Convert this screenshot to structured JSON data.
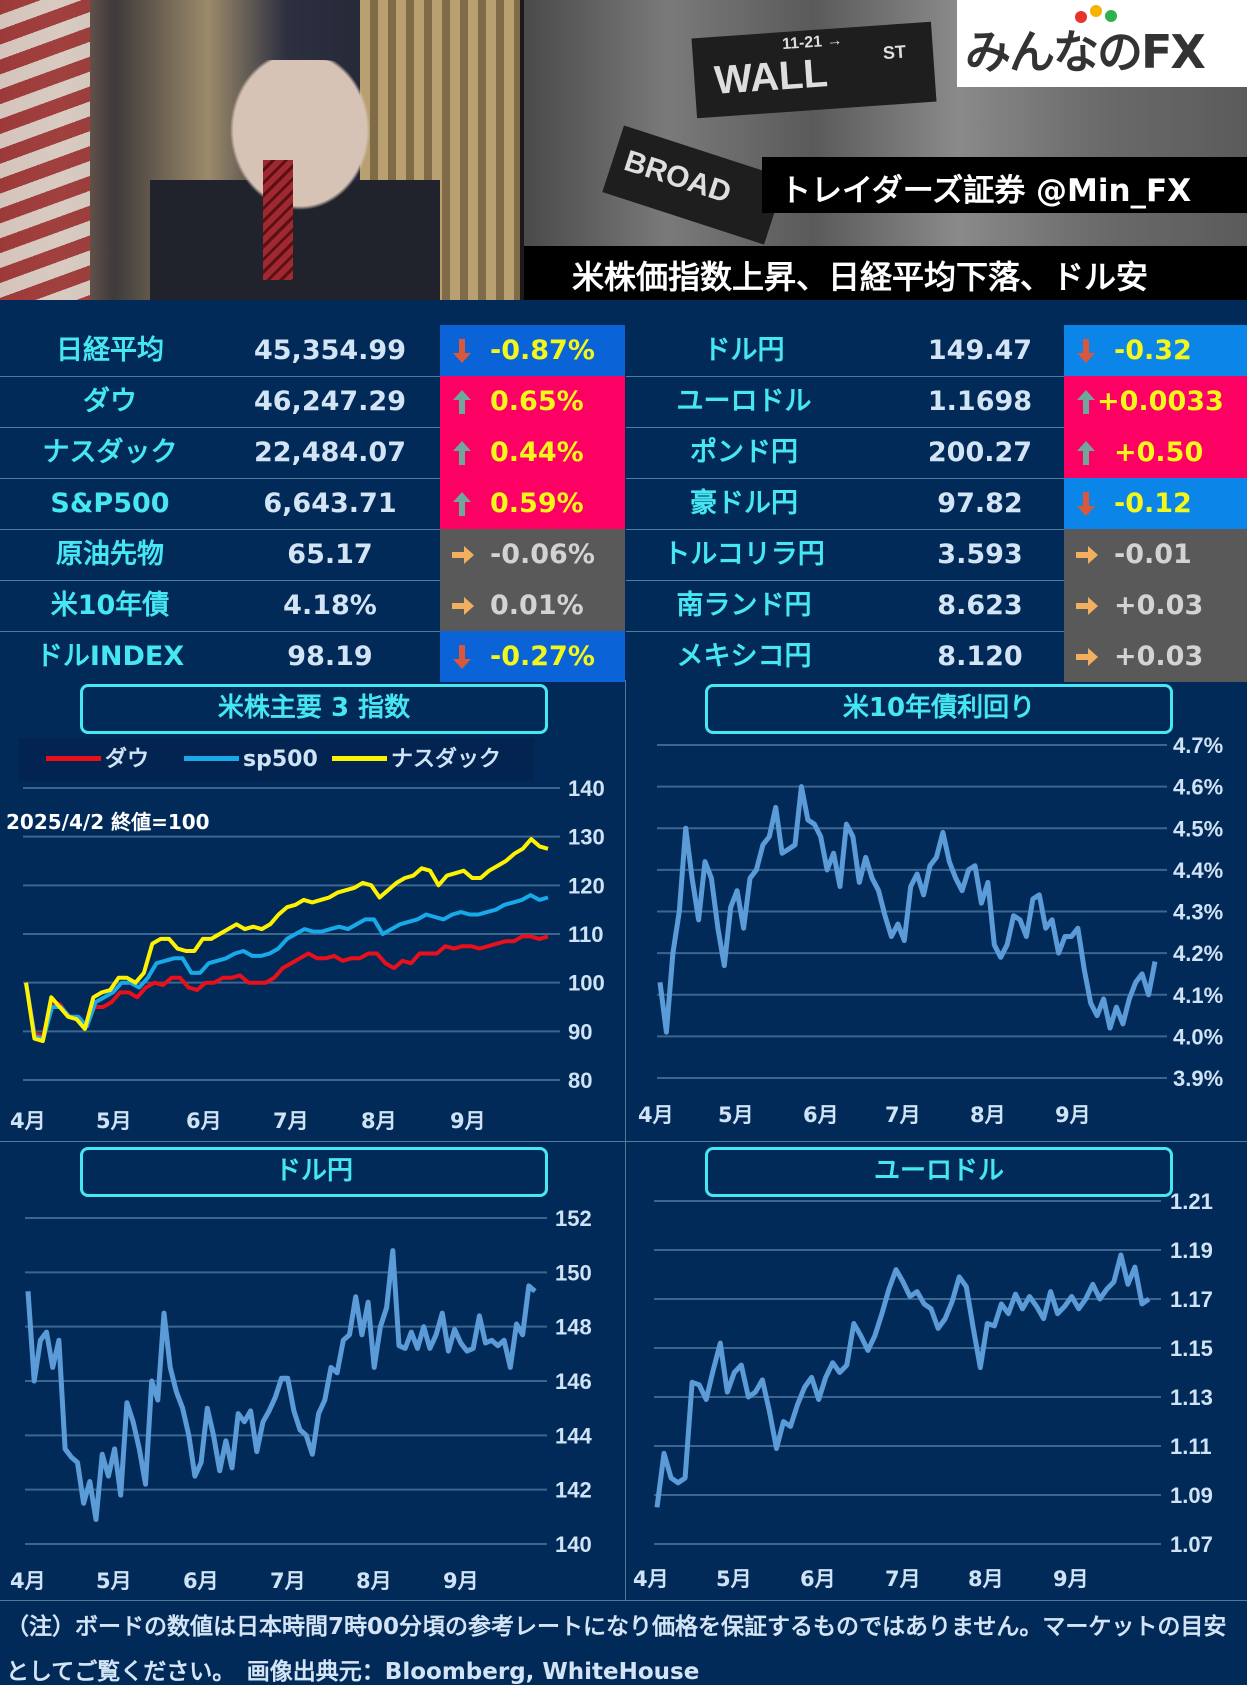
{
  "header": {
    "logo_text": "みんなのFX",
    "logo_dots": [
      "#e8332a",
      "#f5b400",
      "#2bb24c",
      "#1f8ad6"
    ],
    "handle": "トレイダーズ証券 @Min_FX",
    "headline": "米株価指数上昇、日経平均下落、ドル安",
    "photo_left_alt": "president-signing-photo",
    "photo_right_alt": "wall-street-sign-photo",
    "sign_wall": "WALL",
    "sign_wall_st": "ST",
    "sign_wall_num": "11-21 →",
    "sign_broad": "BROAD"
  },
  "colors": {
    "background": "#022a58",
    "name_text": "#46e6f2",
    "value_text": "#d3e4f5",
    "down_bg_left": "#0a64d8",
    "down_bg_right": "#0b86e8",
    "up_bg": "#fc0064",
    "flat_bg": "#595959",
    "up_down_text": "#f4f71a",
    "flat_text": "#d3d3d3",
    "arrow_down": "#d9573a",
    "arrow_up": "#6fa79a",
    "arrow_flat": "#f0b060",
    "dow": "#e8101a",
    "sp500": "#19a8e8",
    "nasdaq": "#fff200",
    "single_line": "#5b9bd8"
  },
  "board": {
    "left": [
      {
        "name": "日経平均",
        "value": "45,354.99",
        "change": "-0.87%",
        "dir": "down"
      },
      {
        "name": "ダウ",
        "value": "46,247.29",
        "change": "0.65%",
        "dir": "up"
      },
      {
        "name": "ナスダック",
        "value": "22,484.07",
        "change": "0.44%",
        "dir": "up"
      },
      {
        "name": "S&P500",
        "value": "6,643.71",
        "change": "0.59%",
        "dir": "up"
      },
      {
        "name": "原油先物",
        "value": "65.17",
        "change": "-0.06%",
        "dir": "flat"
      },
      {
        "name": "米10年債",
        "value": "4.18%",
        "change": "0.01%",
        "dir": "flat"
      },
      {
        "name": "ドルINDEX",
        "value": "98.19",
        "change": "-0.27%",
        "dir": "down"
      }
    ],
    "right": [
      {
        "name": "ドル円",
        "value": "149.47",
        "change": "-0.32",
        "dir": "down"
      },
      {
        "name": "ユーロドル",
        "value": "1.1698",
        "change": "+0.0033",
        "dir": "up"
      },
      {
        "name": "ポンド円",
        "value": "200.27",
        "change": "+0.50",
        "dir": "up"
      },
      {
        "name": "豪ドル円",
        "value": "97.82",
        "change": "-0.12",
        "dir": "down"
      },
      {
        "name": "トルコリラ円",
        "value": "3.593",
        "change": "-0.01",
        "dir": "flat"
      },
      {
        "name": "南ランド円",
        "value": "8.623",
        "change": "+0.03",
        "dir": "flat"
      },
      {
        "name": "メキシコ円",
        "value": "8.120",
        "change": "+0.03",
        "dir": "flat"
      }
    ]
  },
  "chart_data": [
    {
      "type": "line",
      "title": "米株主要 3 指数",
      "annotation": "2025/4/2 終値=100",
      "xlabel": "",
      "ylabel": "",
      "ylim": [
        80,
        140
      ],
      "yticks": [
        "80",
        "90",
        "100",
        "110",
        "120",
        "130",
        "140"
      ],
      "categories": [
        "4月",
        "5月",
        "6月",
        "7月",
        "8月",
        "9月"
      ],
      "legend_position": "top",
      "grid": true,
      "series": [
        {
          "name": "ダウ",
          "color": "#e8101a",
          "values": [
            100,
            89.5,
            89,
            96,
            95.5,
            93,
            93,
            91,
            95,
            95,
            96,
            98,
            98,
            97,
            99,
            100,
            99.5,
            101,
            101,
            99,
            98.5,
            100,
            100,
            101,
            101,
            101.5,
            100,
            100,
            100,
            101,
            103,
            104,
            105,
            106,
            105,
            105,
            105.5,
            104.5,
            105,
            105,
            106,
            106,
            104,
            103,
            104.5,
            104,
            106,
            106,
            106,
            107.5,
            107,
            107.5,
            107.5,
            107,
            107.5,
            108,
            108.5,
            108.5,
            109.5,
            109.5,
            109,
            109.5
          ]
        },
        {
          "name": "sp500",
          "color": "#19a8e8",
          "values": [
            100,
            89,
            88.5,
            95,
            95,
            93,
            93,
            91,
            96,
            97,
            98,
            100,
            100,
            99,
            101,
            104,
            104.5,
            105,
            105,
            102,
            102,
            104,
            104.5,
            105,
            106,
            106.5,
            105.5,
            105.5,
            106,
            107,
            109,
            110,
            111,
            110.5,
            110.5,
            111,
            111.5,
            111,
            112,
            113,
            113,
            110,
            111,
            112,
            112.5,
            113,
            114,
            113.5,
            113,
            114,
            114.5,
            114,
            114,
            114.5,
            115,
            116,
            116.5,
            117,
            118,
            117,
            117.5
          ]
        },
        {
          "name": "ナスダック",
          "color": "#fff200",
          "values": [
            100,
            88.5,
            88,
            97,
            95,
            93,
            92.5,
            90.5,
            97,
            98,
            98.5,
            101,
            101,
            100,
            102,
            108,
            109,
            109,
            107,
            106.5,
            106.5,
            109,
            109,
            110,
            111,
            112,
            111,
            111.5,
            111,
            112,
            114,
            115.5,
            116,
            117,
            116.5,
            117,
            117.5,
            118.5,
            119,
            119.5,
            120.5,
            120,
            117.5,
            119,
            120.5,
            121.5,
            122,
            123.5,
            123,
            120,
            122,
            122.5,
            123,
            121.5,
            121.5,
            123,
            124,
            125,
            126.5,
            127.5,
            129.5,
            128,
            127.5
          ]
        }
      ]
    },
    {
      "type": "line",
      "title": "米10年債利回り",
      "xlabel": "",
      "ylabel": "",
      "ylim": [
        3.9,
        4.7
      ],
      "yticks": [
        "3.9%",
        "4.0%",
        "4.1%",
        "4.2%",
        "4.3%",
        "4.4%",
        "4.5%",
        "4.6%",
        "4.7%"
      ],
      "categories": [
        "4月",
        "5月",
        "6月",
        "7月",
        "8月",
        "9月"
      ],
      "grid": true,
      "series": [
        {
          "name": "米10年債利回り",
          "color": "#5b9bd8",
          "values": [
            4.13,
            4.01,
            4.2,
            4.3,
            4.5,
            4.38,
            4.28,
            4.42,
            4.38,
            4.26,
            4.17,
            4.31,
            4.35,
            4.26,
            4.38,
            4.4,
            4.46,
            4.48,
            4.55,
            4.44,
            4.45,
            4.46,
            4.6,
            4.52,
            4.51,
            4.48,
            4.4,
            4.44,
            4.36,
            4.51,
            4.48,
            4.37,
            4.43,
            4.38,
            4.35,
            4.29,
            4.24,
            4.27,
            4.23,
            4.36,
            4.39,
            4.34,
            4.41,
            4.43,
            4.49,
            4.42,
            4.38,
            4.35,
            4.4,
            4.41,
            4.32,
            4.37,
            4.22,
            4.19,
            4.22,
            4.29,
            4.28,
            4.24,
            4.33,
            4.34,
            4.26,
            4.28,
            4.2,
            4.24,
            4.24,
            4.26,
            4.16,
            4.08,
            4.05,
            4.09,
            4.02,
            4.07,
            4.03,
            4.09,
            4.13,
            4.15,
            4.1,
            4.18
          ]
        }
      ]
    },
    {
      "type": "line",
      "title": "ドル円",
      "xlabel": "",
      "ylabel": "",
      "ylim": [
        140,
        152
      ],
      "yticks": [
        "140",
        "142",
        "144",
        "146",
        "148",
        "150",
        "152"
      ],
      "categories": [
        "4月",
        "5月",
        "6月",
        "7月",
        "8月",
        "9月"
      ],
      "grid": true,
      "series": [
        {
          "name": "ドル円",
          "color": "#5b9bd8",
          "values": [
            149.3,
            146,
            147.5,
            147.8,
            146.5,
            147.5,
            143.5,
            143.2,
            143,
            141.5,
            142.3,
            140.9,
            143.3,
            142.5,
            143.5,
            141.8,
            145.2,
            144.5,
            143.5,
            142.2,
            146,
            145.3,
            148.5,
            146.5,
            145.6,
            145,
            144,
            142.5,
            143,
            145,
            144,
            142.7,
            143.8,
            142.8,
            144.8,
            144.5,
            144.9,
            143.4,
            144.5,
            144.9,
            145.4,
            146.1,
            146.1,
            144.9,
            144.2,
            144,
            143.3,
            144.8,
            145.3,
            146.5,
            146.3,
            147.5,
            147.7,
            149.1,
            147.7,
            148.9,
            146.5,
            148,
            148.7,
            150.8,
            147.3,
            147.2,
            147.8,
            147.2,
            148,
            147.2,
            147.7,
            148.5,
            147.1,
            147.9,
            147.4,
            147.1,
            147.2,
            148.4,
            147.4,
            147.5,
            147.3,
            147.5,
            146.5,
            148.1,
            147.7,
            149.5,
            149.3
          ]
        }
      ]
    },
    {
      "type": "line",
      "title": "ユーロドル",
      "xlabel": "",
      "ylabel": "",
      "ylim": [
        1.07,
        1.21
      ],
      "yticks": [
        "1.07",
        "1.09",
        "1.11",
        "1.13",
        "1.15",
        "1.17",
        "1.19",
        "1.21"
      ],
      "categories": [
        "4月",
        "5月",
        "6月",
        "7月",
        "8月",
        "9月"
      ],
      "grid": true,
      "series": [
        {
          "name": "ユーロドル",
          "color": "#5b9bd8",
          "values": [
            1.085,
            1.107,
            1.097,
            1.095,
            1.097,
            1.136,
            1.135,
            1.129,
            1.141,
            1.152,
            1.132,
            1.14,
            1.143,
            1.13,
            1.132,
            1.137,
            1.124,
            1.109,
            1.12,
            1.118,
            1.127,
            1.134,
            1.138,
            1.129,
            1.138,
            1.144,
            1.14,
            1.143,
            1.16,
            1.155,
            1.149,
            1.155,
            1.164,
            1.174,
            1.182,
            1.177,
            1.171,
            1.173,
            1.168,
            1.166,
            1.158,
            1.162,
            1.169,
            1.179,
            1.175,
            1.158,
            1.142,
            1.16,
            1.159,
            1.168,
            1.164,
            1.172,
            1.166,
            1.171,
            1.167,
            1.162,
            1.173,
            1.164,
            1.167,
            1.171,
            1.166,
            1.17,
            1.176,
            1.17,
            1.174,
            1.177,
            1.188,
            1.176,
            1.183,
            1.168,
            1.17
          ]
        }
      ]
    }
  ],
  "footer": {
    "note": "（注）ボードの数値は日本時間7時00分頃の参考レートになり価格を保証するものではありません。マーケットの目安としてご覧ください。　画像出典元：Bloomberg, WhiteHouse"
  }
}
